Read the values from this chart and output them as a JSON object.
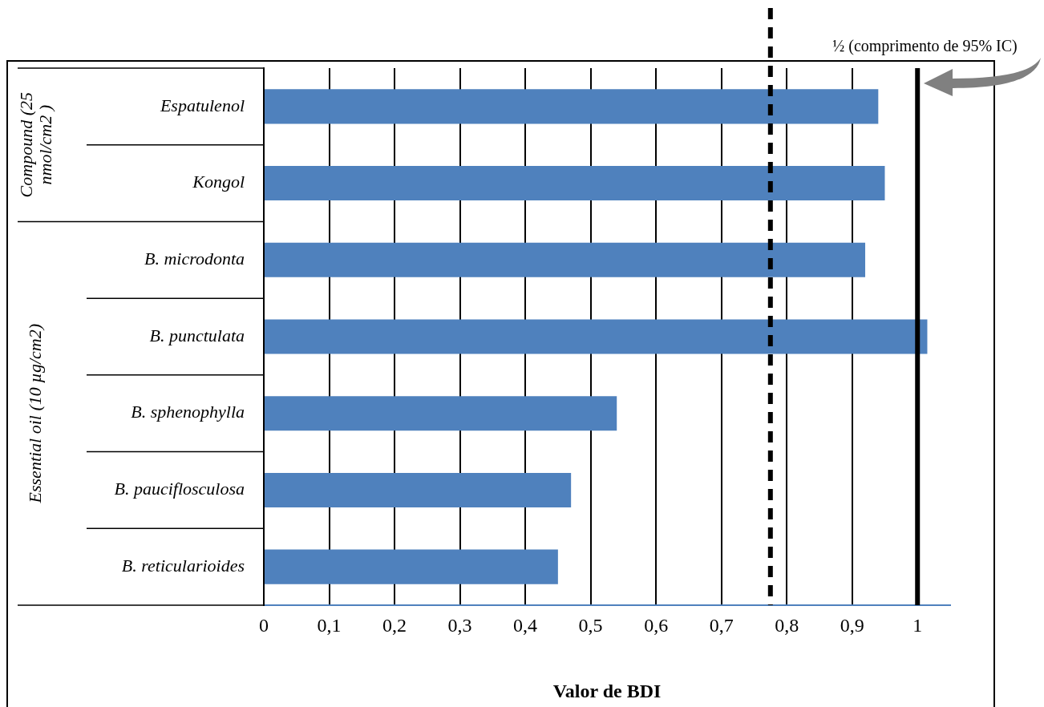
{
  "chart_data": {
    "type": "bar",
    "orientation": "horizontal",
    "xlabel": "Valor de BDI",
    "categories": [
      "Espatulenol",
      "Kongol",
      "B. microdonta",
      "B. punctulata",
      "B. sphenophylla",
      "B. pauciflosculosa",
      "B. reticularioides"
    ],
    "values": [
      0.94,
      0.95,
      0.92,
      1.015,
      0.54,
      0.47,
      0.45
    ],
    "color": "#4f81bd",
    "xlim": [
      0,
      1.05
    ],
    "xticks": [
      0,
      {
        "value": 0.1,
        "label": "0,1"
      },
      {
        "value": 0.2,
        "label": "0,2"
      },
      {
        "value": 0.3,
        "label": "0,3"
      },
      {
        "value": 0.4,
        "label": "0,4"
      },
      {
        "value": 0.5,
        "label": "0,5"
      },
      {
        "value": 0.6,
        "label": "0,6"
      },
      {
        "value": 0.7,
        "label": "0,7"
      },
      {
        "value": 0.8,
        "label": "0,8"
      },
      {
        "value": 0.9,
        "label": "0,9"
      },
      1
    ],
    "grid": "x",
    "legend": false,
    "ref_lines": [
      {
        "axis": "x",
        "value": 0.775,
        "line_style": "dashed",
        "color": "#000000"
      },
      {
        "axis": "x",
        "value": 1,
        "label": "½ (comprimento de 95% IC)",
        "line_style": "solid",
        "color": "#000000"
      }
    ],
    "annotations": [
      "Compound (25 nmol/cm2 )",
      "Essential oil (10 µg/cm2)"
    ]
  }
}
